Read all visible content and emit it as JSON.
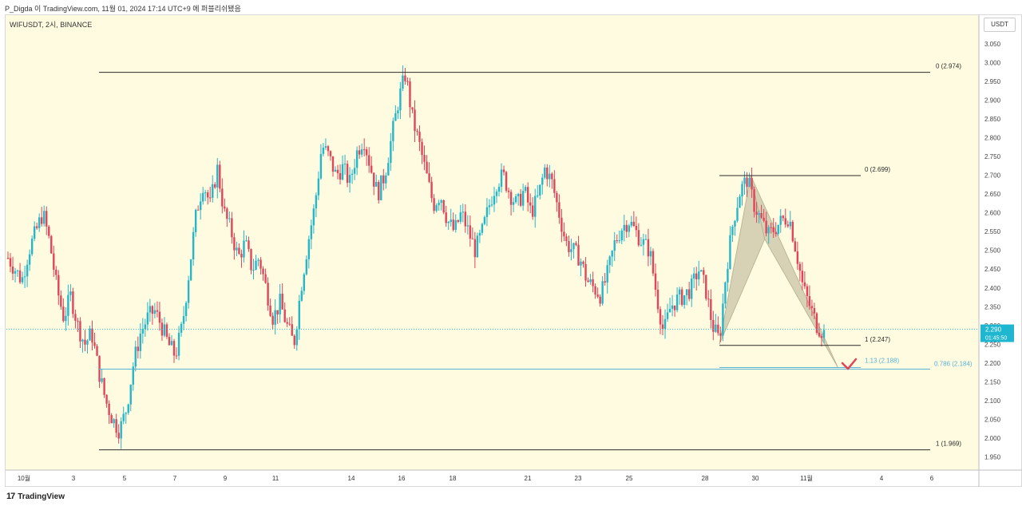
{
  "header": {
    "attribution": "P_Digda 이 TradingView.com, 11월 01, 2024 17:14 UTC+9 에 퍼블리쉬됐음"
  },
  "symbol_info": "WIFUSDT, 2시, BINANCE",
  "currency_button": "USDT",
  "footer": {
    "brand": "TradingView",
    "logo": "17"
  },
  "colors": {
    "background": "#fefbe0",
    "up": "#26b6c9",
    "down": "#e0455a",
    "pattern_fill": "#c9c3a8",
    "fib_blue": "#5ab2d6",
    "last_price_bg": "#1fb6cf"
  },
  "chart_data": {
    "type": "candlestick",
    "ylim": [
      1.93,
      3.09
    ],
    "y_ticks": [
      "3.050",
      "3.000",
      "2.950",
      "2.900",
      "2.850",
      "2.800",
      "2.750",
      "2.700",
      "2.650",
      "2.600",
      "2.550",
      "2.500",
      "2.450",
      "2.400",
      "2.350",
      "2.300",
      "2.250",
      "2.200",
      "2.150",
      "2.100",
      "2.050",
      "2.000",
      "1.950"
    ],
    "x_ticks": [
      "10월",
      "3",
      "5",
      "7",
      "9",
      "11",
      "14",
      "16",
      "18",
      "21",
      "23",
      "25",
      "28",
      "30",
      "11월",
      "4",
      "6"
    ],
    "last_price": "2.290",
    "countdown": "01:45:50",
    "last_price_value": 2.29,
    "price_path": [
      [
        0,
        2.48
      ],
      [
        1,
        2.45
      ],
      [
        2,
        2.42
      ],
      [
        3,
        2.5
      ],
      [
        4,
        2.55
      ],
      [
        5,
        2.6
      ],
      [
        6,
        2.52
      ],
      [
        7,
        2.4
      ],
      [
        8,
        2.32
      ],
      [
        9,
        2.38
      ],
      [
        10,
        2.3
      ],
      [
        11,
        2.25
      ],
      [
        12,
        2.28
      ],
      [
        13,
        2.18
      ],
      [
        14,
        2.1
      ],
      [
        15,
        2.05
      ],
      [
        16,
        2.02
      ],
      [
        17,
        2.08
      ],
      [
        18,
        2.2
      ],
      [
        19,
        2.28
      ],
      [
        20,
        2.32
      ],
      [
        21,
        2.34
      ],
      [
        22,
        2.3
      ],
      [
        23,
        2.25
      ],
      [
        24,
        2.22
      ],
      [
        25,
        2.3
      ],
      [
        26,
        2.45
      ],
      [
        27,
        2.6
      ],
      [
        28,
        2.68
      ],
      [
        29,
        2.62
      ],
      [
        30,
        2.72
      ],
      [
        31,
        2.6
      ],
      [
        32,
        2.55
      ],
      [
        33,
        2.48
      ],
      [
        34,
        2.52
      ],
      [
        35,
        2.45
      ],
      [
        36,
        2.48
      ],
      [
        37,
        2.4
      ],
      [
        38,
        2.32
      ],
      [
        39,
        2.36
      ],
      [
        40,
        2.3
      ],
      [
        41,
        2.25
      ],
      [
        42,
        2.4
      ],
      [
        43,
        2.52
      ],
      [
        44,
        2.62
      ],
      [
        45,
        2.78
      ],
      [
        46,
        2.75
      ],
      [
        47,
        2.7
      ],
      [
        48,
        2.72
      ],
      [
        49,
        2.68
      ],
      [
        50,
        2.76
      ],
      [
        51,
        2.8
      ],
      [
        52,
        2.72
      ],
      [
        53,
        2.65
      ],
      [
        54,
        2.7
      ],
      [
        55,
        2.8
      ],
      [
        56,
        2.9
      ],
      [
        57,
        2.97
      ],
      [
        58,
        2.85
      ],
      [
        59,
        2.78
      ],
      [
        60,
        2.7
      ],
      [
        61,
        2.62
      ],
      [
        62,
        2.65
      ],
      [
        63,
        2.58
      ],
      [
        64,
        2.55
      ],
      [
        65,
        2.6
      ],
      [
        66,
        2.55
      ],
      [
        67,
        2.5
      ],
      [
        68,
        2.55
      ],
      [
        69,
        2.62
      ],
      [
        70,
        2.68
      ],
      [
        71,
        2.7
      ],
      [
        72,
        2.65
      ],
      [
        73,
        2.62
      ],
      [
        74,
        2.66
      ],
      [
        75,
        2.6
      ],
      [
        76,
        2.64
      ],
      [
        77,
        2.72
      ],
      [
        78,
        2.68
      ],
      [
        79,
        2.6
      ],
      [
        80,
        2.52
      ],
      [
        81,
        2.5
      ],
      [
        82,
        2.48
      ],
      [
        83,
        2.42
      ],
      [
        84,
        2.4
      ],
      [
        85,
        2.38
      ],
      [
        86,
        2.44
      ],
      [
        87,
        2.52
      ],
      [
        88,
        2.56
      ],
      [
        89,
        2.58
      ],
      [
        90,
        2.55
      ],
      [
        91,
        2.52
      ],
      [
        92,
        2.5
      ],
      [
        93,
        2.38
      ],
      [
        94,
        2.28
      ],
      [
        95,
        2.35
      ],
      [
        96,
        2.37
      ],
      [
        97,
        2.38
      ],
      [
        98,
        2.4
      ],
      [
        99,
        2.45
      ],
      [
        100,
        2.4
      ],
      [
        101,
        2.3
      ],
      [
        102,
        2.26
      ],
      [
        103,
        2.45
      ],
      [
        104,
        2.58
      ],
      [
        105,
        2.66
      ],
      [
        106,
        2.69
      ],
      [
        107,
        2.62
      ],
      [
        108,
        2.58
      ],
      [
        109,
        2.54
      ],
      [
        110,
        2.56
      ],
      [
        111,
        2.58
      ],
      [
        112,
        2.59
      ],
      [
        113,
        2.5
      ],
      [
        114,
        2.4
      ],
      [
        115,
        2.35
      ],
      [
        116,
        2.3
      ],
      [
        117,
        2.28
      ]
    ],
    "fib_levels": [
      {
        "label": "0 (2.974)",
        "price": 2.974,
        "color": "#2b2b2b"
      },
      {
        "label": "1 (1.969)",
        "price": 1.969,
        "color": "#2b2b2b"
      },
      {
        "label": "0 (2.699)",
        "price": 2.699,
        "color": "#2b2b2b"
      },
      {
        "label": "1 (2.247)",
        "price": 2.247,
        "color": "#2b2b2b"
      },
      {
        "label": "1.13 (2.188)",
        "price": 2.188,
        "color": "#5ab2d6"
      },
      {
        "label": "0.786 (2.184)",
        "price": 2.184,
        "color": "#5ab2d6"
      }
    ],
    "pattern_points": [
      [
        2.25,
        102
      ],
      [
        2.699,
        106.5
      ],
      [
        2.53,
        108.5
      ],
      [
        2.188,
        119
      ]
    ],
    "grid": false,
    "legend": "none"
  }
}
